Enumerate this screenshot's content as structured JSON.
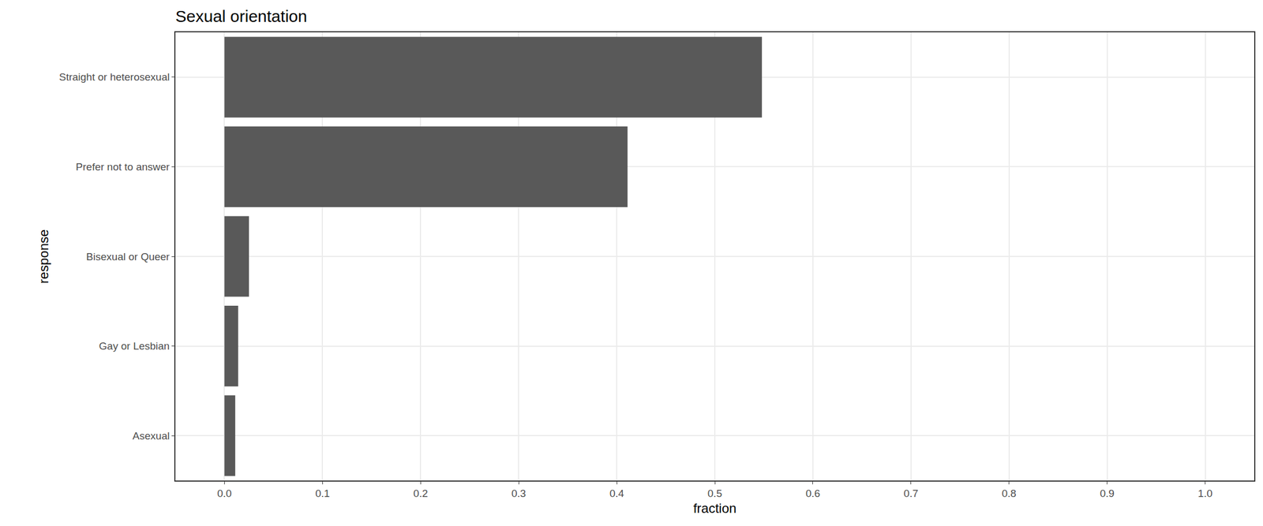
{
  "chart_data": {
    "type": "bar",
    "orientation": "horizontal",
    "title": "Sexual orientation",
    "x_label": "fraction",
    "y_label": "response",
    "categories": [
      "Straight or heterosexual",
      "Prefer not to answer",
      "Bisexual or Queer",
      "Gay or Lesbian",
      "Asexual"
    ],
    "values": [
      0.548,
      0.411,
      0.025,
      0.014,
      0.011
    ],
    "color": "#595959",
    "xlim": [
      -0.05,
      1.05
    ],
    "xticks": [
      {
        "value": 0,
        "label": "0.0"
      },
      0.1,
      0.2,
      0.3,
      0.4,
      0.5,
      0.6,
      0.7,
      0.8,
      0.9,
      {
        "value": 1,
        "label": "1.0"
      }
    ],
    "grid": true
  }
}
